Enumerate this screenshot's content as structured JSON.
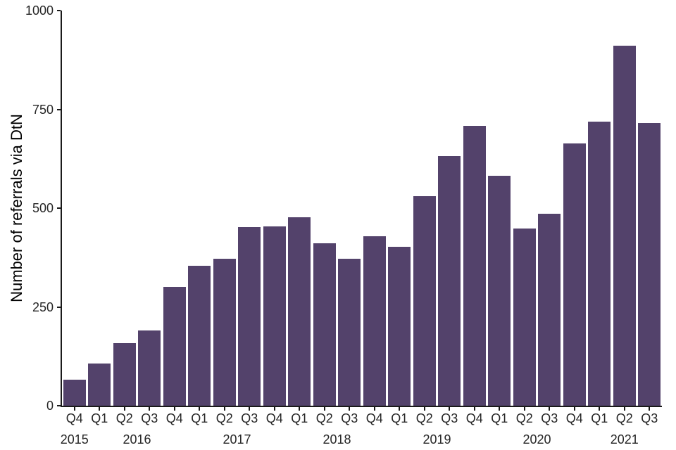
{
  "chart_data": {
    "type": "bar",
    "title": "",
    "ylabel": "Number of referrals via DtN",
    "xlabel": "",
    "ylim": [
      0,
      1000
    ],
    "yticks": [
      0,
      250,
      500,
      750,
      1000
    ],
    "grid": false,
    "legend_position": "none",
    "bar_color": "#53426B",
    "axis_color": "#1A1A1A",
    "text_color": "#262626",
    "categories": [
      "Q4 2015",
      "Q1 2016",
      "Q2 2016",
      "Q3 2016",
      "Q4 2016",
      "Q1 2017",
      "Q2 2017",
      "Q3 2017",
      "Q4 2017",
      "Q1 2018",
      "Q2 2018",
      "Q3 2018",
      "Q4 2018",
      "Q1 2019",
      "Q2 2019",
      "Q3 2019",
      "Q4 2019",
      "Q1 2020",
      "Q2 2020",
      "Q3 2020",
      "Q4 2020",
      "Q1 2021",
      "Q2 2021",
      "Q3 2021"
    ],
    "x_tick_labels": [
      "Q4",
      "Q1",
      "Q2",
      "Q3",
      "Q4",
      "Q1",
      "Q2",
      "Q3",
      "Q4",
      "Q1",
      "Q2",
      "Q3",
      "Q4",
      "Q1",
      "Q2",
      "Q3",
      "Q4",
      "Q1",
      "Q2",
      "Q3",
      "Q4",
      "Q1",
      "Q2",
      "Q3"
    ],
    "year_groups": [
      {
        "label": "2015",
        "start": 0,
        "count": 1
      },
      {
        "label": "2016",
        "start": 1,
        "count": 4
      },
      {
        "label": "2017",
        "start": 5,
        "count": 4
      },
      {
        "label": "2018",
        "start": 9,
        "count": 4
      },
      {
        "label": "2019",
        "start": 13,
        "count": 4
      },
      {
        "label": "2020",
        "start": 17,
        "count": 4
      },
      {
        "label": "2021",
        "start": 21,
        "count": 3
      }
    ],
    "values": [
      65,
      106,
      158,
      191,
      301,
      354,
      372,
      452,
      454,
      477,
      411,
      372,
      428,
      403,
      530,
      631,
      709,
      581,
      448,
      485,
      664,
      719,
      911,
      716
    ]
  }
}
